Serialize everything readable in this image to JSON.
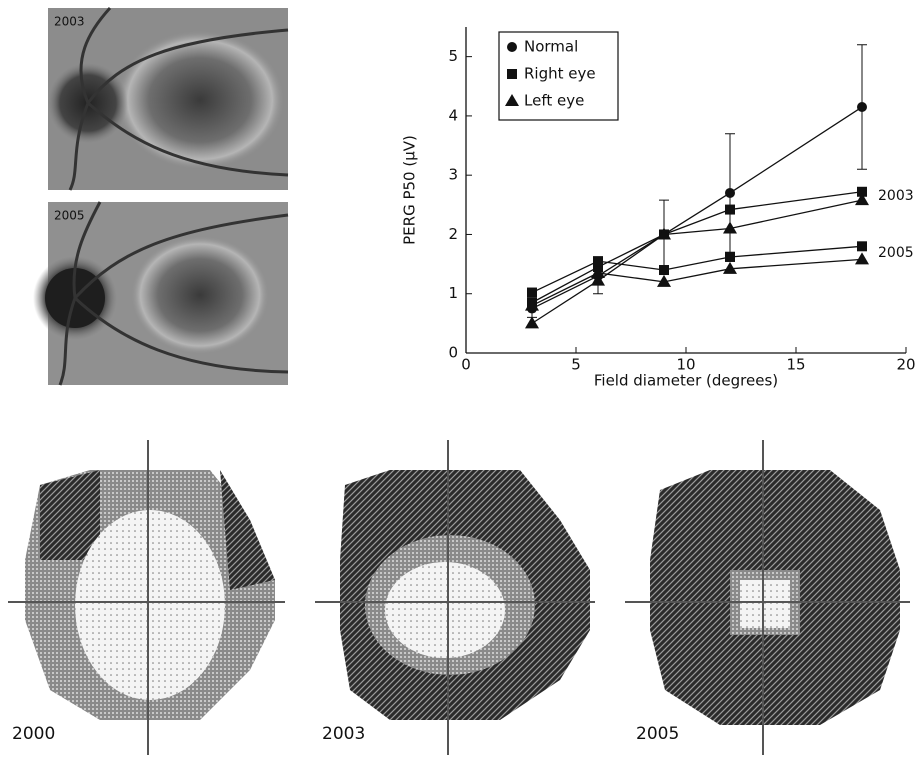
{
  "fundus": [
    {
      "label": "2003"
    },
    {
      "label": "2005"
    }
  ],
  "visual_fields": [
    {
      "label": "2000"
    },
    {
      "label": "2003"
    },
    {
      "label": "2005"
    }
  ],
  "chart_data": {
    "type": "line",
    "x_label": "Field diameter (degrees)",
    "y_label": "PERG P50 (µV)",
    "x": [
      3,
      6,
      9,
      12,
      18
    ],
    "xlim": [
      0,
      20
    ],
    "xticks": [
      0,
      5,
      10,
      15,
      20
    ],
    "ylim": [
      0,
      5.5
    ],
    "yticks": [
      0,
      1,
      2,
      3,
      4,
      5
    ],
    "legend": "upper left",
    "annotations": [
      "2003",
      "2005"
    ],
    "series": [
      {
        "name": "Normal",
        "marker": "circle",
        "color": "#111111",
        "values": [
          0.75,
          1.3,
          2.0,
          2.7,
          4.15
        ],
        "errors": [
          0.15,
          0.3,
          0.58,
          1.0,
          1.05
        ]
      },
      {
        "name": "Right eye",
        "marker": "square",
        "color": "#111111",
        "values": [
          0.85,
          1.45,
          2.0,
          2.42,
          2.72
        ]
      },
      {
        "name": "Left eye",
        "marker": "triangle",
        "color": "#111111",
        "values": [
          0.5,
          1.22,
          2.0,
          2.1,
          2.58
        ]
      },
      {
        "marker": "square",
        "color": "#111111",
        "values": [
          1.02,
          1.55,
          1.4,
          1.62,
          1.8
        ]
      },
      {
        "marker": "triangle",
        "color": "#111111",
        "values": [
          0.8,
          1.35,
          1.2,
          1.42,
          1.58
        ]
      }
    ]
  }
}
